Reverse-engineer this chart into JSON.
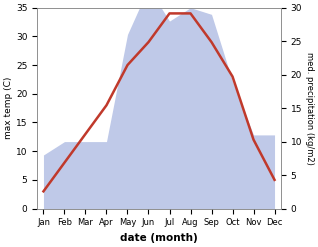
{
  "months": [
    "Jan",
    "Feb",
    "Mar",
    "Apr",
    "May",
    "Jun",
    "Jul",
    "Aug",
    "Sep",
    "Oct",
    "Nov",
    "Dec"
  ],
  "temperature": [
    3,
    8,
    13,
    18,
    25,
    29,
    34,
    34,
    29,
    23,
    12,
    5
  ],
  "precipitation": [
    8,
    10,
    10,
    10,
    26,
    33,
    28,
    30,
    29,
    19,
    11,
    11
  ],
  "temp_color": "#c0392b",
  "precip_fill_color": "#bfc9e8",
  "precip_edge_color": "#9dadd8",
  "temp_ylim": [
    0,
    35
  ],
  "precip_ylim": [
    0,
    30
  ],
  "temp_yticks": [
    0,
    5,
    10,
    15,
    20,
    25,
    30,
    35
  ],
  "precip_yticks": [
    0,
    5,
    10,
    15,
    20,
    25,
    30
  ],
  "xlabel": "date (month)",
  "ylabel_left": "max temp (C)",
  "ylabel_right": "med. precipitation (kg/m2)",
  "background_color": "#ffffff"
}
